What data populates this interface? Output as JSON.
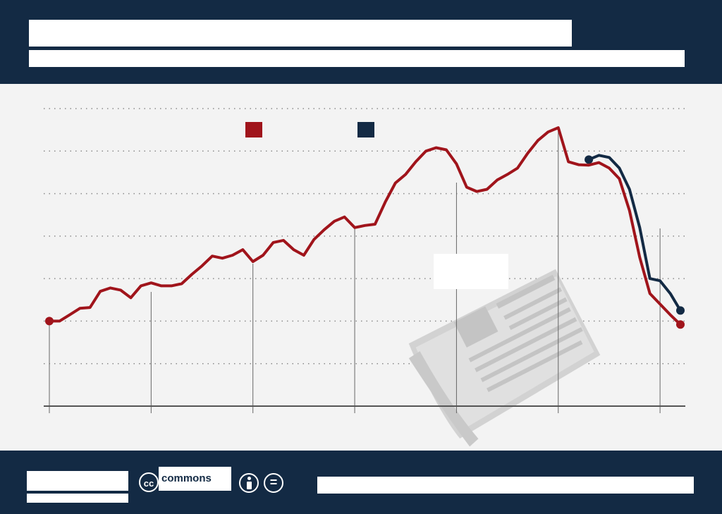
{
  "header": {
    "title": "",
    "subtitle": ""
  },
  "footer": {
    "license_label": "commons",
    "cc_icon": "cc-icon",
    "by_icon": "person-icon",
    "nd_icon": "equals-icon",
    "source": ""
  },
  "colors": {
    "navy": "#132a44",
    "red": "#a0141b",
    "grid": "#8a8a8a"
  },
  "chart_data": {
    "type": "line",
    "title": "",
    "xlabel": "",
    "ylabel": "",
    "xlim": [
      0,
      63
    ],
    "ylim": [
      0,
      7
    ],
    "grid": true,
    "legend_placement": "top-center",
    "vertical_markers": [
      0,
      10,
      20,
      30,
      40,
      50,
      60
    ],
    "series": [
      {
        "color": "#a0141b",
        "x": [
          0,
          1,
          2,
          3,
          4,
          5,
          6,
          7,
          8,
          9,
          10,
          11,
          12,
          13,
          14,
          15,
          16,
          17,
          18,
          19,
          20,
          21,
          22,
          23,
          24,
          25,
          26,
          27,
          28,
          29,
          30,
          31,
          32,
          33,
          34,
          35,
          36,
          37,
          38,
          39,
          40,
          41,
          42,
          43,
          44,
          45,
          46,
          47,
          48,
          49,
          50,
          51,
          52,
          53,
          54,
          55,
          56,
          57,
          58,
          59,
          60,
          61,
          62
        ],
        "values": [
          2.0,
          2.0,
          2.15,
          2.3,
          2.32,
          2.7,
          2.78,
          2.73,
          2.55,
          2.83,
          2.9,
          2.83,
          2.83,
          2.88,
          3.1,
          3.3,
          3.53,
          3.48,
          3.55,
          3.68,
          3.4,
          3.55,
          3.85,
          3.9,
          3.68,
          3.55,
          3.92,
          4.15,
          4.35,
          4.45,
          4.2,
          4.25,
          4.28,
          4.8,
          5.25,
          5.45,
          5.75,
          6.0,
          6.08,
          6.03,
          5.7,
          5.15,
          5.05,
          5.1,
          5.32,
          5.45,
          5.6,
          5.95,
          6.25,
          6.45,
          6.55,
          5.75,
          5.68,
          5.67,
          5.73,
          5.6,
          5.35,
          4.6,
          3.5,
          2.65,
          2.4,
          2.15,
          1.92
        ]
      },
      {
        "color": "#132a44",
        "x": [
          53,
          54,
          55,
          56,
          57,
          58,
          59,
          60,
          61,
          62
        ],
        "values": [
          5.8,
          5.9,
          5.85,
          5.6,
          5.1,
          4.2,
          3.0,
          2.95,
          2.65,
          2.25
        ]
      }
    ]
  }
}
